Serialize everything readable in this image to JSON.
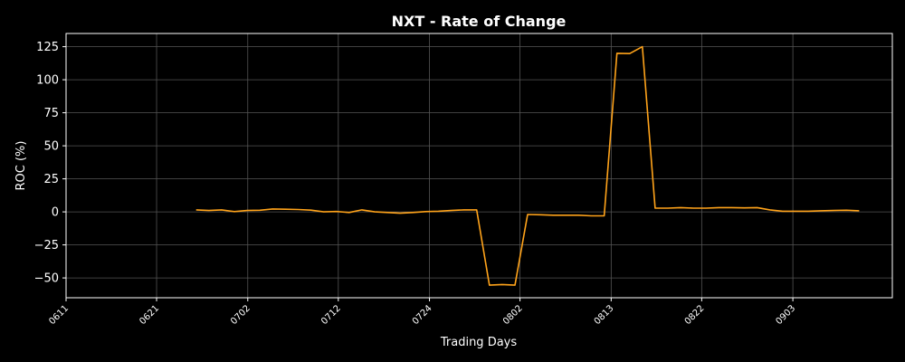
{
  "chart_data": {
    "type": "line",
    "title": "NXT - Rate of Change",
    "xlabel": "Trading Days",
    "ylabel": "ROC (%)",
    "xlim": [
      0,
      64.8
    ],
    "ylim": [
      -65,
      135
    ],
    "grid": true,
    "yticks": [
      -50,
      -25,
      0,
      25,
      50,
      75,
      100,
      125
    ],
    "xticks": [
      {
        "pos": 0,
        "label": "0611"
      },
      {
        "pos": 7.1,
        "label": "0621"
      },
      {
        "pos": 14.25,
        "label": "0702"
      },
      {
        "pos": 21.35,
        "label": "0712"
      },
      {
        "pos": 28.5,
        "label": "0724"
      },
      {
        "pos": 35.6,
        "label": "0802"
      },
      {
        "pos": 42.75,
        "label": "0813"
      },
      {
        "pos": 49.85,
        "label": "0822"
      },
      {
        "pos": 57.0,
        "label": "0903"
      }
    ],
    "series": [
      {
        "color": "#ffa31a",
        "points": [
          [
            10.2,
            1.5
          ],
          [
            11.2,
            1.0
          ],
          [
            12.2,
            1.5
          ],
          [
            13.2,
            0.2
          ],
          [
            14.2,
            1.0
          ],
          [
            15.2,
            1.2
          ],
          [
            16.2,
            2.2
          ],
          [
            17.2,
            2.0
          ],
          [
            18.2,
            1.8
          ],
          [
            19.2,
            1.3
          ],
          [
            20.2,
            0.0
          ],
          [
            21.2,
            0.3
          ],
          [
            22.2,
            -0.5
          ],
          [
            23.2,
            1.5
          ],
          [
            24.2,
            0.0
          ],
          [
            25.2,
            -0.5
          ],
          [
            26.2,
            -1.0
          ],
          [
            27.2,
            -0.5
          ],
          [
            28.2,
            0.2
          ],
          [
            29.2,
            0.5
          ],
          [
            30.2,
            1.0
          ],
          [
            31.2,
            1.5
          ],
          [
            32.2,
            1.5
          ],
          [
            33.2,
            -55.5
          ],
          [
            34.2,
            -55.0
          ],
          [
            35.2,
            -55.5
          ],
          [
            36.2,
            -2.0
          ],
          [
            37.2,
            -2.2
          ],
          [
            38.2,
            -2.5
          ],
          [
            39.2,
            -2.5
          ],
          [
            40.2,
            -2.5
          ],
          [
            41.2,
            -3.0
          ],
          [
            42.2,
            -3.0
          ],
          [
            43.2,
            120.0
          ],
          [
            44.2,
            119.8
          ],
          [
            45.2,
            125.0
          ],
          [
            46.2,
            2.8
          ],
          [
            47.2,
            2.8
          ],
          [
            48.2,
            3.2
          ],
          [
            49.2,
            2.8
          ],
          [
            50.2,
            2.8
          ],
          [
            51.2,
            3.2
          ],
          [
            52.2,
            3.2
          ],
          [
            53.2,
            3.0
          ],
          [
            54.2,
            3.2
          ],
          [
            55.2,
            1.5
          ],
          [
            56.2,
            0.5
          ],
          [
            57.2,
            0.5
          ],
          [
            58.2,
            0.5
          ],
          [
            59.2,
            0.8
          ],
          [
            60.2,
            1.0
          ],
          [
            61.2,
            1.2
          ],
          [
            62.2,
            0.8
          ]
        ]
      }
    ]
  }
}
